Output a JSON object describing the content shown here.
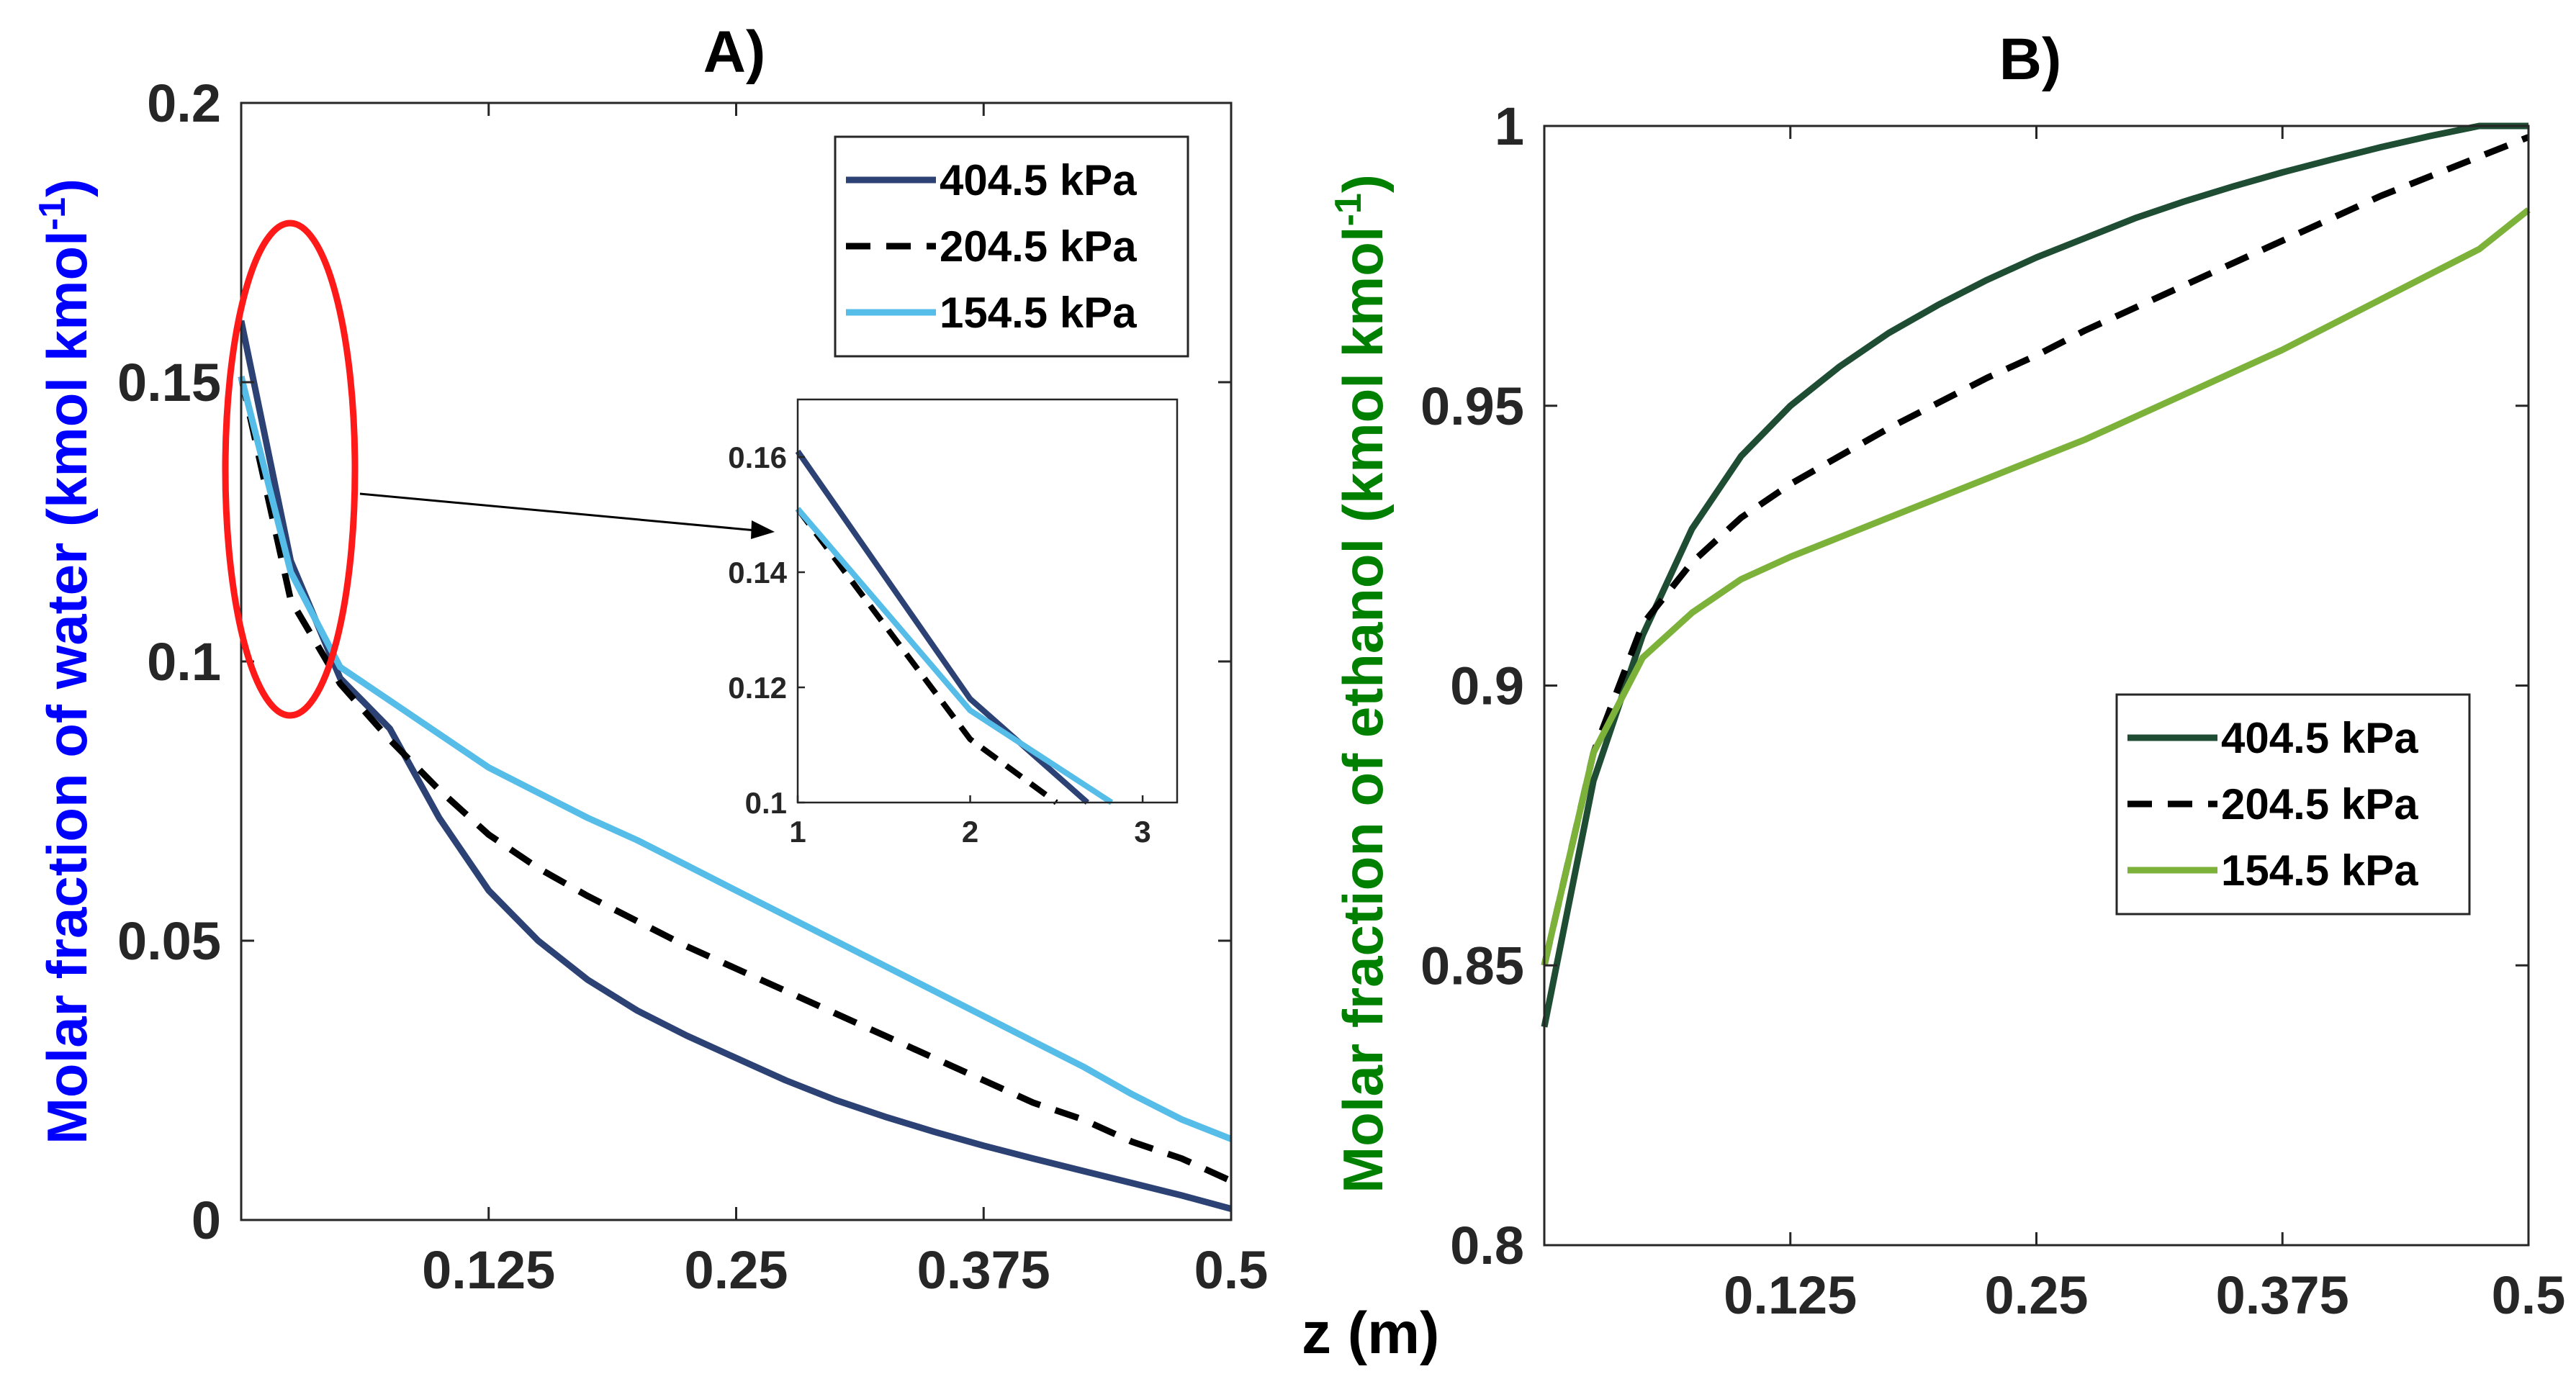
{
  "shared": {
    "xlabel": "z (m)",
    "series_names": [
      "404.5 kPa",
      "204.5 kPa",
      "154.5 kPa"
    ]
  },
  "chart_data": [
    {
      "panel": "A",
      "type": "line",
      "title": "A)",
      "xlabel": "z (m)",
      "ylabel_prefix": "Molar fraction of ",
      "ylabel_word": "water",
      "ylabel_suffix": " (kmol kmol",
      "ylabel_sup": "-1",
      "ylabel_close": ")",
      "ylabel_color": "#0000ff",
      "xlim": [
        0,
        0.5
      ],
      "ylim": [
        0,
        0.2
      ],
      "xticks": [
        0.125,
        0.25,
        0.375,
        0.5
      ],
      "xtick_labels": [
        "0.125",
        "0.25",
        "0.375",
        "0.5"
      ],
      "yticks": [
        0,
        0.05,
        0.1,
        0.15,
        0.2
      ],
      "ytick_labels": [
        "0",
        "0.05",
        "0.1",
        "0.15",
        "0.2"
      ],
      "legend_position": "top-right",
      "series": [
        {
          "name": "404.5 kPa",
          "color": "#2c4275",
          "dash": "solid",
          "x": [
            0,
            0.025,
            0.05,
            0.075,
            0.1,
            0.125,
            0.15,
            0.175,
            0.2,
            0.225,
            0.25,
            0.275,
            0.3,
            0.325,
            0.35,
            0.375,
            0.4,
            0.425,
            0.45,
            0.475,
            0.5
          ],
          "y": [
            0.161,
            0.118,
            0.097,
            0.088,
            0.072,
            0.059,
            0.05,
            0.043,
            0.0375,
            0.033,
            0.029,
            0.025,
            0.0215,
            0.0185,
            0.0158,
            0.0133,
            0.011,
            0.0088,
            0.0066,
            0.0044,
            0.002
          ]
        },
        {
          "name": "204.5 kPa",
          "color": "#000000",
          "dash": "dashed",
          "x": [
            0,
            0.025,
            0.05,
            0.075,
            0.1,
            0.125,
            0.15,
            0.175,
            0.2,
            0.225,
            0.25,
            0.275,
            0.3,
            0.325,
            0.35,
            0.375,
            0.4,
            0.425,
            0.45,
            0.475,
            0.5
          ],
          "y": [
            0.151,
            0.111,
            0.096,
            0.086,
            0.077,
            0.069,
            0.063,
            0.058,
            0.0535,
            0.049,
            0.045,
            0.041,
            0.037,
            0.033,
            0.029,
            0.025,
            0.021,
            0.018,
            0.014,
            0.011,
            0.007
          ]
        },
        {
          "name": "154.5 kPa",
          "color": "#56bde8",
          "dash": "solid",
          "x": [
            0,
            0.025,
            0.05,
            0.075,
            0.1,
            0.125,
            0.15,
            0.175,
            0.2,
            0.225,
            0.25,
            0.275,
            0.3,
            0.325,
            0.35,
            0.375,
            0.4,
            0.425,
            0.45,
            0.475,
            0.5
          ],
          "y": [
            0.151,
            0.116,
            0.099,
            0.093,
            0.087,
            0.081,
            0.0765,
            0.072,
            0.068,
            0.0635,
            0.059,
            0.0545,
            0.05,
            0.0455,
            0.041,
            0.0365,
            0.032,
            0.0275,
            0.0225,
            0.018,
            0.0145
          ]
        }
      ],
      "inset": {
        "xlim": [
          1,
          3.2
        ],
        "ylim": [
          0.1,
          0.17
        ],
        "xticks": [
          1,
          2,
          3
        ],
        "xtick_labels": [
          "1",
          "2",
          "3"
        ],
        "yticks": [
          0.1,
          0.12,
          0.14,
          0.16
        ],
        "ytick_labels": [
          "0.1",
          "0.12",
          "0.14",
          "0.16"
        ],
        "series": [
          {
            "name": "404.5 kPa",
            "x": [
              1,
              2,
              2.68
            ],
            "y": [
              0.161,
              0.118,
              0.1
            ]
          },
          {
            "name": "204.5 kPa",
            "x": [
              1,
              2,
              2.5
            ],
            "y": [
              0.151,
              0.111,
              0.1
            ]
          },
          {
            "name": "154.5 kPa",
            "x": [
              1,
              2,
              2.82
            ],
            "y": [
              0.151,
              0.116,
              0.1
            ]
          }
        ]
      }
    },
    {
      "panel": "B",
      "type": "line",
      "title": "B)",
      "xlabel": "z (m)",
      "ylabel_prefix": "Molar fraction of ",
      "ylabel_word": "ethanol",
      "ylabel_suffix": " (kmol kmol",
      "ylabel_sup": "-1",
      "ylabel_close": ")",
      "ylabel_color": "#008000",
      "xlim": [
        0,
        0.5
      ],
      "ylim": [
        0.8,
        1.0
      ],
      "xticks": [
        0.125,
        0.25,
        0.375,
        0.5
      ],
      "xtick_labels": [
        "0.125",
        "0.25",
        "0.375",
        "0.5"
      ],
      "yticks": [
        0.8,
        0.85,
        0.9,
        0.95,
        1.0
      ],
      "ytick_labels": [
        "0.8",
        "0.85",
        "0.9",
        "0.95",
        "1"
      ],
      "legend_position": "middle-right",
      "series": [
        {
          "name": "404.5 kPa",
          "color": "#1e4d33",
          "dash": "solid",
          "x": [
            0,
            0.025,
            0.05,
            0.075,
            0.1,
            0.125,
            0.15,
            0.175,
            0.2,
            0.225,
            0.25,
            0.275,
            0.3,
            0.325,
            0.35,
            0.375,
            0.4,
            0.425,
            0.45,
            0.475,
            0.5
          ],
          "y": [
            0.839,
            0.883,
            0.909,
            0.928,
            0.941,
            0.95,
            0.957,
            0.963,
            0.968,
            0.9725,
            0.9765,
            0.98,
            0.9835,
            0.9865,
            0.9892,
            0.9917,
            0.994,
            0.9962,
            0.9982,
            1.0,
            1.0
          ]
        },
        {
          "name": "204.5 kPa",
          "color": "#000000",
          "dash": "dashed",
          "x": [
            0,
            0.025,
            0.05,
            0.075,
            0.1,
            0.125,
            0.15,
            0.175,
            0.2,
            0.225,
            0.25,
            0.275,
            0.3,
            0.325,
            0.35,
            0.375,
            0.4,
            0.425,
            0.45,
            0.475,
            0.5
          ],
          "y": [
            0.85,
            0.888,
            0.911,
            0.922,
            0.93,
            0.936,
            0.941,
            0.946,
            0.9505,
            0.955,
            0.959,
            0.9635,
            0.9675,
            0.9715,
            0.9755,
            0.9795,
            0.9835,
            0.9875,
            0.991,
            0.9945,
            0.998
          ]
        },
        {
          "name": "154.5 kPa",
          "color": "#7cb23a",
          "dash": "solid",
          "x": [
            0,
            0.025,
            0.05,
            0.075,
            0.1,
            0.125,
            0.15,
            0.175,
            0.2,
            0.225,
            0.25,
            0.275,
            0.3,
            0.325,
            0.35,
            0.375,
            0.4,
            0.425,
            0.45,
            0.475,
            0.5
          ],
          "y": [
            0.85,
            0.888,
            0.905,
            0.913,
            0.919,
            0.923,
            0.9265,
            0.93,
            0.9335,
            0.937,
            0.9405,
            0.944,
            0.948,
            0.952,
            0.956,
            0.96,
            0.9645,
            0.969,
            0.9735,
            0.978,
            0.985
          ]
        }
      ]
    }
  ]
}
